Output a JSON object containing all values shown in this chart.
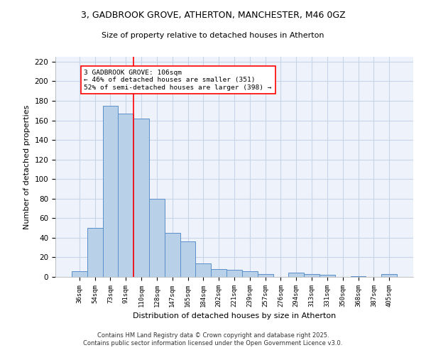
{
  "title1": "3, GADBROOK GROVE, ATHERTON, MANCHESTER, M46 0GZ",
  "title2": "Size of property relative to detached houses in Atherton",
  "xlabel": "Distribution of detached houses by size in Atherton",
  "ylabel": "Number of detached properties",
  "categories": [
    "36sqm",
    "54sqm",
    "73sqm",
    "91sqm",
    "110sqm",
    "128sqm",
    "147sqm",
    "165sqm",
    "184sqm",
    "202sqm",
    "221sqm",
    "239sqm",
    "257sqm",
    "276sqm",
    "294sqm",
    "313sqm",
    "331sqm",
    "350sqm",
    "368sqm",
    "387sqm",
    "405sqm"
  ],
  "values": [
    6,
    50,
    175,
    167,
    162,
    80,
    45,
    36,
    14,
    8,
    7,
    6,
    3,
    0,
    4,
    3,
    2,
    0,
    1,
    0,
    3
  ],
  "bar_color": "#b8d0e8",
  "bar_edge_color": "#5b8fc9",
  "grid_color": "#c8d4e8",
  "background_color": "#eef2fb",
  "redline_index": 3.5,
  "annotation_text": "3 GADBROOK GROVE: 106sqm\n← 46% of detached houses are smaller (351)\n52% of semi-detached houses are larger (398) →",
  "ylim": [
    0,
    225
  ],
  "yticks": [
    0,
    20,
    40,
    60,
    80,
    100,
    120,
    140,
    160,
    180,
    200,
    220
  ],
  "footer": "Contains HM Land Registry data © Crown copyright and database right 2025.\nContains public sector information licensed under the Open Government Licence v3.0."
}
